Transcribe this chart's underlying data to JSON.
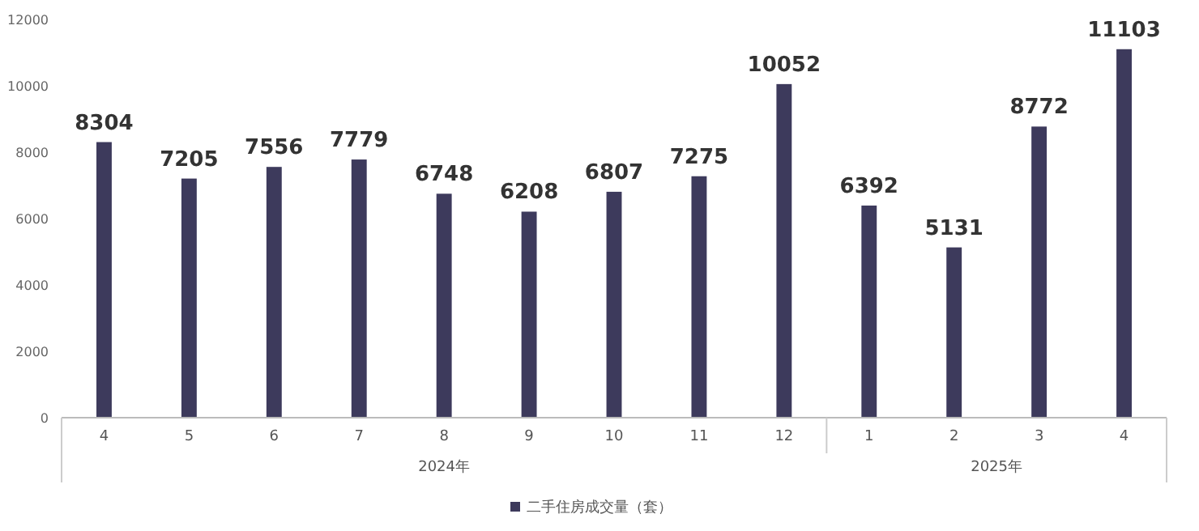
{
  "chart_data": {
    "type": "bar",
    "categories": [
      "4",
      "5",
      "6",
      "7",
      "8",
      "9",
      "10",
      "11",
      "12",
      "1",
      "2",
      "3",
      "4"
    ],
    "series": [
      {
        "name": "二手住房成交量（套）",
        "color": "#3d3a5c",
        "values": [
          8304,
          7205,
          7556,
          7779,
          6748,
          6208,
          6807,
          7275,
          10052,
          6392,
          5131,
          8772,
          11103
        ]
      }
    ],
    "ylim": [
      0,
      12000
    ],
    "yticks": [
      0,
      2000,
      4000,
      6000,
      8000,
      10000,
      12000
    ],
    "data_labels": true,
    "legend": "bottom",
    "annotations": [
      "2024年",
      "2025年"
    ]
  }
}
